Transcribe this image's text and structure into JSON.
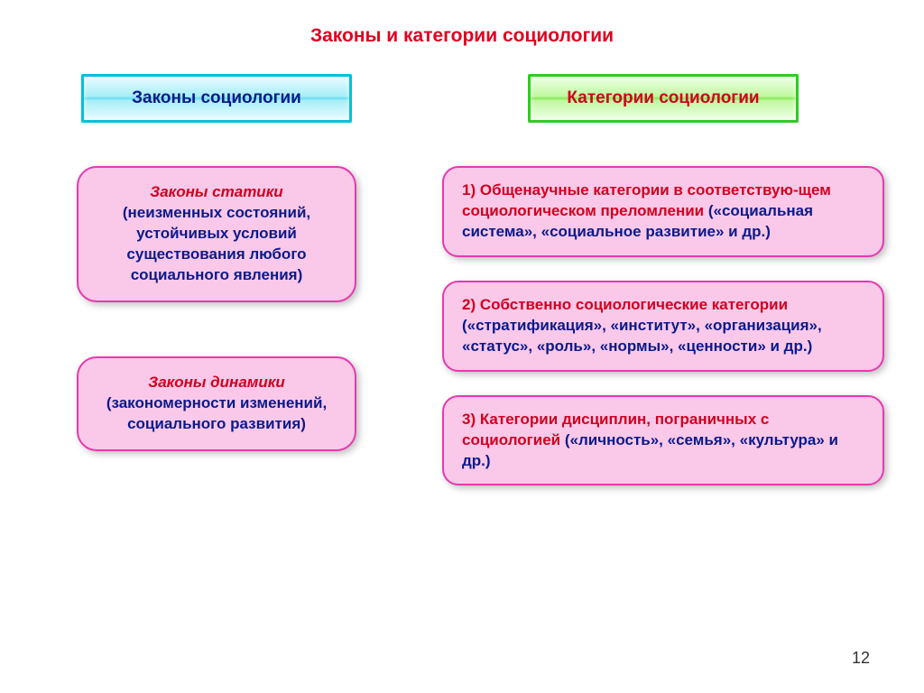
{
  "title": {
    "text": "Законы и категории социологии",
    "color": "#e00020"
  },
  "left": {
    "header": {
      "text": "Законы социологии",
      "text_color": "#0a1a8a"
    },
    "box1": {
      "title": "Законы статики",
      "body": "(неизменных состояний, устойчивых условий существования любого социального явления)",
      "title_color": "#d00020",
      "body_color": "#0a1a8a",
      "border_color": "#e63ab0"
    },
    "box2": {
      "title": "Законы динамики",
      "body": "(закономерности изменений, социального развития)",
      "title_color": "#d00020",
      "body_color": "#0a1a8a",
      "border_color": "#e63ab0"
    }
  },
  "right": {
    "header": {
      "text": "Категории социологии",
      "text_color": "#d00020"
    },
    "box1": {
      "num": "1) ",
      "title": "Общенаучные категории в соответствую-щем социологическом преломлении",
      "body": " («социальная система», «социальное развитие» и др.)",
      "title_color": "#d00020",
      "body_color": "#0a1a8a",
      "border_color": "#e63ab0"
    },
    "box2": {
      "num": "2) ",
      "title": "Собственно социологические категории",
      "body": " («стратификация», «институт», «организация», «статус», «роль», «нормы», «ценности» и др.)",
      "title_color": "#d00020",
      "body_color": "#0a1a8a",
      "border_color": "#e63ab0"
    },
    "box3": {
      "num": "3) ",
      "title": "Категории дисциплин, пограничных с социологией",
      "body": " («личность», «семья», «культура» и др.)",
      "title_color": "#d00020",
      "body_color": "#0a1a8a",
      "border_color": "#e63ab0"
    }
  },
  "page_number": "12",
  "colors": {
    "pink_fill": "#fac8e8"
  }
}
